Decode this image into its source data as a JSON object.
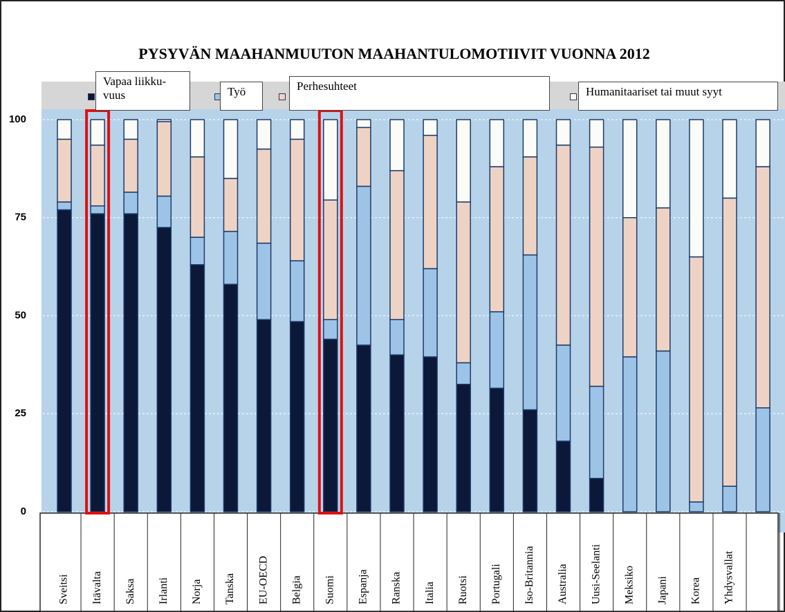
{
  "chart_data": {
    "type": "stacked_bar",
    "title": "PYSYVÄN MAAHANMUUTON MAAHANTULOMOTIIVIT VUONNA 2012",
    "categories": [
      "Sveitsi",
      "Itävalta",
      "Saksa",
      "Irlanti",
      "Norja",
      "Tanska",
      "EU-OECD",
      "Belgia",
      "Suomi",
      "Espanja",
      "Ranska",
      "Italia",
      "Ruotsi",
      "Portugali",
      "Iso-Britannia",
      "Australia",
      "Uusi-Seelanti",
      "Meksiko",
      "Japani",
      "Korea",
      "Yhdysvallat",
      null
    ],
    "series": [
      {
        "name": "Vapaa liikku-vuus",
        "color": "#0b1838",
        "values": [
          77,
          76,
          76,
          72.5,
          63,
          58,
          49,
          48.5,
          44,
          42.5,
          40,
          39.5,
          32.5,
          31.5,
          26,
          18,
          8.5,
          0,
          0,
          0,
          0,
          0
        ]
      },
      {
        "name": "Työ",
        "color": "#9dc4e6",
        "values": [
          2,
          2,
          5.5,
          8,
          7,
          13.5,
          19.5,
          15.5,
          5,
          40.5,
          9,
          22.5,
          5.5,
          19.5,
          39.5,
          24.5,
          23.5,
          39.5,
          41,
          2.5,
          6.5,
          26.5
        ]
      },
      {
        "name": "Perhesuhteet",
        "color": "#eed3c4",
        "values": [
          16,
          15.5,
          13.5,
          19,
          20.5,
          13.5,
          24,
          31,
          30.5,
          15,
          38,
          34,
          41,
          37,
          25,
          51,
          61,
          35.5,
          36.5,
          62.5,
          73.5,
          61.5
        ]
      },
      {
        "name": "Humanitaariset tai muut syyt",
        "color": "#fbfbf8",
        "values": [
          5,
          6.5,
          5,
          0.5,
          9.5,
          15,
          7.5,
          5,
          20.5,
          2,
          13,
          4,
          21,
          12,
          9.5,
          6.5,
          7,
          25,
          22.5,
          35,
          20,
          12
        ]
      }
    ],
    "ylim": [
      0,
      100
    ],
    "yticks": [
      0,
      25,
      50,
      75,
      100
    ],
    "grid": true
  }
}
